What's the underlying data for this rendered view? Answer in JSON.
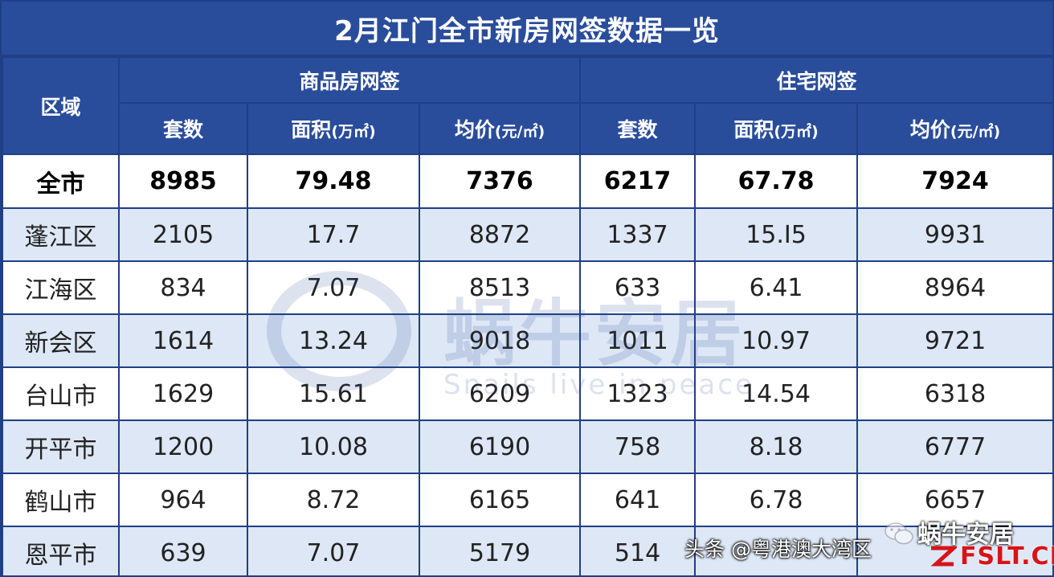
{
  "title": "2月江门全市新房网签数据一览",
  "header": {
    "region": "区域",
    "group_commercial": "商品房网签",
    "group_residential": "住宅网签",
    "col_units": "套数",
    "col_area_label": "面积",
    "col_area_unit": "(万㎡)",
    "col_price_label": "均价",
    "col_price_unit": "(元/㎡)"
  },
  "total": {
    "region": "全市",
    "c_units": "8985",
    "c_area": "79.48",
    "c_price": "7376",
    "r_units": "6217",
    "r_area": "67.78",
    "r_price": "7924"
  },
  "rows": [
    {
      "region": "蓬江区",
      "c_units": "2105",
      "c_area": "17.7",
      "c_price": "8872",
      "r_units": "1337",
      "r_area": "15.I5",
      "r_price": "9931"
    },
    {
      "region": "江海区",
      "c_units": "834",
      "c_area": "7.07",
      "c_price": "8513",
      "r_units": "633",
      "r_area": "6.41",
      "r_price": "8964"
    },
    {
      "region": "新会区",
      "c_units": "1614",
      "c_area": "13.24",
      "c_price": "9018",
      "r_units": "1011",
      "r_area": "10.97",
      "r_price": "9721"
    },
    {
      "region": "台山市",
      "c_units": "1629",
      "c_area": "15.61",
      "c_price": "6209",
      "r_units": "1323",
      "r_area": "14.54",
      "r_price": "6318"
    },
    {
      "region": "开平市",
      "c_units": "1200",
      "c_area": "10.08",
      "c_price": "6190",
      "r_units": "758",
      "r_area": "8.18",
      "r_price": "6777"
    },
    {
      "region": "鹤山市",
      "c_units": "964",
      "c_area": "8.72",
      "c_price": "6165",
      "r_units": "641",
      "r_area": "6.78",
      "r_price": "6657"
    },
    {
      "region": "恩平市",
      "c_units": "639",
      "c_area": "7.07",
      "c_price": "5179",
      "r_units": "514",
      "r_area": "",
      "r_price": ""
    }
  ],
  "watermark": {
    "text": "蜗牛安居",
    "subtitle": "Snails live in peace"
  },
  "credit": "头条 @粤港澳大湾区",
  "brand": "蜗牛安居",
  "site": "FSLT.CN",
  "colors": {
    "header_bg": "#2a4d9b",
    "row_alt": "#dde7f5",
    "border": "#1f3f86",
    "site_red": "#d6141a"
  },
  "icons": {
    "wechat": "wechat-icon",
    "site_mark": "site-logo-mark"
  }
}
